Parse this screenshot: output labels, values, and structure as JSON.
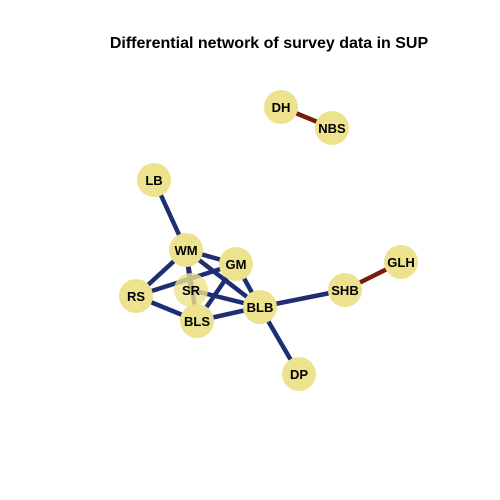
{
  "title": "Differential network of survey data in SUP",
  "colors": {
    "node_fill": "#EDE28D",
    "negative_edge": "#1F2E72",
    "positive_edge": "#7A1A0A",
    "background": "#ffffff"
  },
  "nodes": [
    {
      "id": "DH",
      "label": "DH"
    },
    {
      "id": "NBS",
      "label": "NBS"
    },
    {
      "id": "LB",
      "label": "LB"
    },
    {
      "id": "WM",
      "label": "WM"
    },
    {
      "id": "GM",
      "label": "GM"
    },
    {
      "id": "SR",
      "label": "SR"
    },
    {
      "id": "RS",
      "label": "RS"
    },
    {
      "id": "BLS",
      "label": "BLS"
    },
    {
      "id": "BLB",
      "label": "BLB"
    },
    {
      "id": "SHB",
      "label": "SHB"
    },
    {
      "id": "GLH",
      "label": "GLH"
    },
    {
      "id": "DP",
      "label": "DP"
    }
  ],
  "edges": [
    {
      "source": "DH",
      "target": "NBS",
      "sign": "positive"
    },
    {
      "source": "SHB",
      "target": "GLH",
      "sign": "positive"
    },
    {
      "source": "LB",
      "target": "WM",
      "sign": "negative"
    },
    {
      "source": "WM",
      "target": "RS",
      "sign": "negative"
    },
    {
      "source": "WM",
      "target": "GM",
      "sign": "negative"
    },
    {
      "source": "WM",
      "target": "BLB",
      "sign": "negative"
    },
    {
      "source": "WM",
      "target": "BLS",
      "sign": "negative"
    },
    {
      "source": "WM",
      "target": "SR",
      "sign": "negative"
    },
    {
      "source": "GM",
      "target": "BLS",
      "sign": "negative"
    },
    {
      "source": "GM",
      "target": "BLB",
      "sign": "negative"
    },
    {
      "source": "GM",
      "target": "RS",
      "sign": "negative"
    },
    {
      "source": "RS",
      "target": "BLS",
      "sign": "negative"
    },
    {
      "source": "SR",
      "target": "BLB",
      "sign": "negative"
    },
    {
      "source": "BLS",
      "target": "BLB",
      "sign": "negative"
    },
    {
      "source": "BLB",
      "target": "SHB",
      "sign": "negative"
    },
    {
      "source": "BLB",
      "target": "DP",
      "sign": "negative"
    }
  ]
}
